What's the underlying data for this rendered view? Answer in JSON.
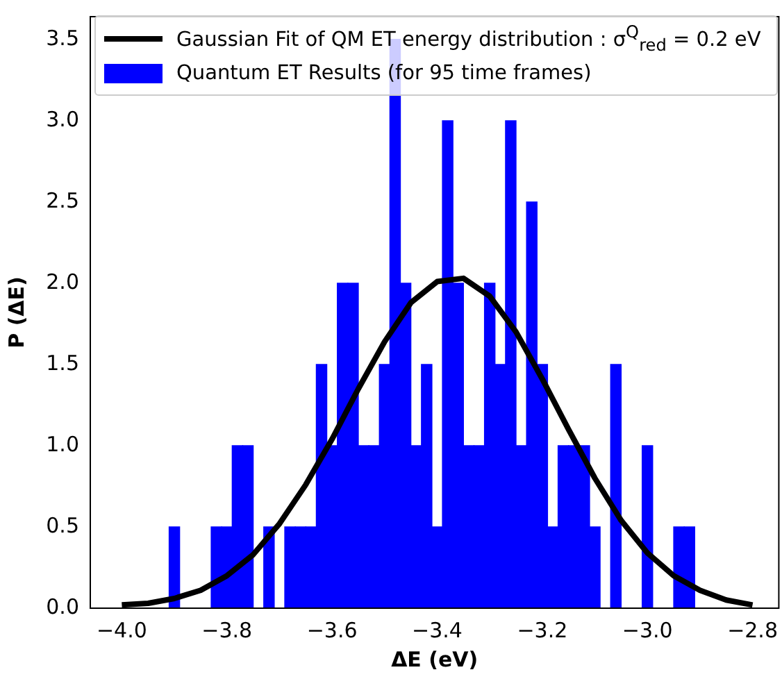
{
  "chart_data": {
    "type": "histogram",
    "xlabel": "ΔE (eV)",
    "ylabel": "P (ΔE)",
    "xlim": [
      -4.06,
      -2.75
    ],
    "ylim": [
      0,
      3.64
    ],
    "xticks": [
      {
        "value": -4.0,
        "label": "−4.0"
      },
      {
        "value": -3.8,
        "label": "−3.8"
      },
      {
        "value": -3.6,
        "label": "−3.6"
      },
      {
        "value": -3.4,
        "label": "−3.4"
      },
      {
        "value": -3.2,
        "label": "−3.2"
      },
      {
        "value": -3.0,
        "label": "−3.0"
      },
      {
        "value": -2.8,
        "label": "−2.8"
      }
    ],
    "yticks": [
      {
        "value": 0,
        "label": "0.0"
      },
      {
        "value": 0.5,
        "label": "0.5"
      },
      {
        "value": 1,
        "label": "1.0"
      },
      {
        "value": 1.5,
        "label": "1.5"
      },
      {
        "value": 2,
        "label": "2.0"
      },
      {
        "value": 2.5,
        "label": "2.5"
      },
      {
        "value": 3,
        "label": "3.0"
      },
      {
        "value": 3.5,
        "label": "3.5"
      }
    ],
    "legend": "top right",
    "grid": false,
    "series": [
      {
        "type": "line",
        "name": "Gaussian Fit of QM ET energy distribution : σ$^{Q}$$_{red}$ = 0.2 eV",
        "color": "#000000",
        "x": [
          -4.0,
          -3.95,
          -3.9,
          -3.85,
          -3.8,
          -3.75,
          -3.7,
          -3.65,
          -3.6,
          -3.55,
          -3.5,
          -3.45,
          -3.4,
          -3.35,
          -3.3,
          -3.25,
          -3.2,
          -3.15,
          -3.1,
          -3.05,
          -3.0,
          -2.95,
          -2.9,
          -2.85,
          -2.8
        ],
        "values": [
          0.02,
          0.03,
          0.06,
          0.11,
          0.2,
          0.33,
          0.52,
          0.76,
          1.04,
          1.35,
          1.64,
          1.88,
          2.01,
          2.03,
          1.92,
          1.7,
          1.41,
          1.1,
          0.8,
          0.54,
          0.34,
          0.2,
          0.11,
          0.05,
          0.02
        ]
      },
      {
        "name": "Quantum ET Results (for 95 time frames)",
        "color": "#0000ff",
        "bins": [
          -3.91,
          -3.89,
          -3.87,
          -3.85,
          -3.83,
          -3.81,
          -3.79,
          -3.77,
          -3.75,
          -3.73,
          -3.71,
          -3.69,
          -3.67,
          -3.65,
          -3.63,
          -3.61,
          -3.59,
          -3.57,
          -3.55,
          -3.53,
          -3.51,
          -3.49,
          -3.47,
          -3.45,
          -3.43,
          -3.41,
          -3.39,
          -3.37,
          -3.35,
          -3.33,
          -3.31,
          -3.29,
          -3.27,
          -3.25,
          -3.23,
          -3.21,
          -3.19,
          -3.17,
          -3.15,
          -3.13,
          -3.11,
          -3.09,
          -3.07,
          -3.05,
          -3.03,
          -3.01,
          -2.99,
          -2.97,
          -2.95,
          -2.93,
          -2.91
        ],
        "values": [
          0.5,
          0,
          0,
          0,
          0.5,
          0.5,
          1,
          1,
          0,
          0.5,
          0,
          0.5,
          0.5,
          0.5,
          1.5,
          1,
          2,
          2,
          1,
          1,
          1.5,
          3.5,
          2,
          1,
          1.5,
          0.5,
          3,
          2,
          1,
          1,
          2,
          1.5,
          3,
          1,
          2.5,
          1.5,
          0.5,
          1,
          1,
          1,
          0.5,
          0,
          1.5,
          0,
          0,
          1,
          0,
          0,
          0.5,
          0.5
        ]
      }
    ]
  }
}
